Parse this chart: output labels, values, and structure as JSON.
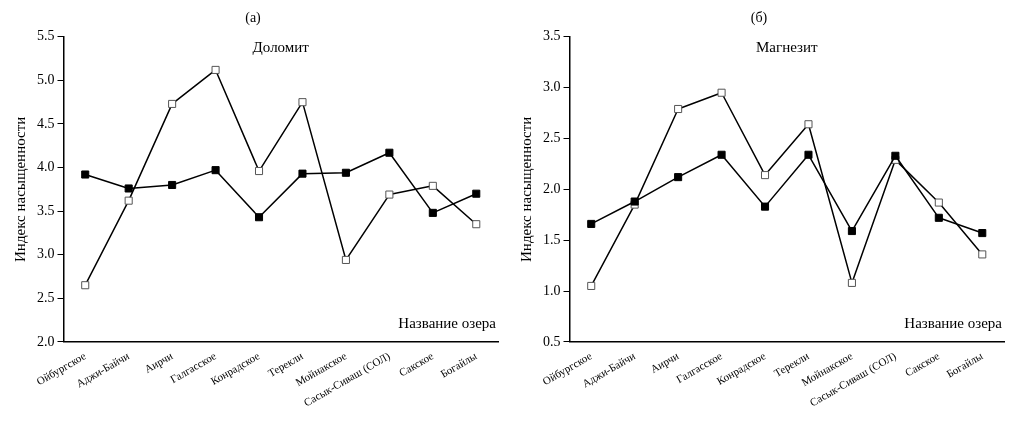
{
  "chart_data": [
    {
      "type": "line",
      "title": "(a)",
      "subtitle": "Доломит",
      "xlabel": "Название озера",
      "ylabel": "Индекс насыщенности",
      "categories": [
        "Ойбургское",
        "Аджи-Байчи",
        "Аирчи",
        "Галгасское",
        "Конрадское",
        "Терекли",
        "Мойнакское",
        "Сасык-Сиваш (СОЛ)",
        "Сакское",
        "Богайлы"
      ],
      "series": [
        {
          "color": "#000000",
          "values": [
            3.92,
            3.76,
            3.8,
            3.97,
            3.43,
            3.93,
            3.94,
            4.17,
            3.48,
            3.7
          ]
        },
        {
          "color": "#000000",
          "values": [
            2.65,
            3.62,
            4.73,
            5.12,
            3.96,
            4.75,
            2.94,
            3.69,
            3.79,
            3.35
          ]
        }
      ],
      "ylim": [
        2.0,
        5.5
      ],
      "yticks": [
        {
          "value": 2,
          "label": "2.0"
        },
        2.5,
        {
          "value": 3,
          "label": "3.0"
        },
        3.5,
        {
          "value": 4,
          "label": "4.0"
        },
        4.5,
        {
          "value": 5,
          "label": "5.0"
        },
        5.5
      ],
      "marker": "square",
      "line_style": "solid",
      "grid": false,
      "legend": false
    },
    {
      "type": "line",
      "title": "(б)",
      "subtitle": "Магнезит",
      "xlabel": "Название озера",
      "ylabel": "Индекс насыщенности",
      "categories": [
        "Ойбургское",
        "Аджи-Байчи",
        "Аирчи",
        "Галгасское",
        "Конрадское",
        "Терекли",
        "Мойнакское",
        "Сасык-Сиваш (СОЛ)",
        "Сакское",
        "Богайлы"
      ],
      "series": [
        {
          "color": "#000000",
          "values": [
            1.66,
            1.88,
            2.12,
            2.34,
            1.83,
            2.34,
            1.59,
            2.33,
            1.72,
            1.57
          ]
        },
        {
          "color": "#000000",
          "values": [
            1.05,
            1.85,
            2.79,
            2.95,
            2.14,
            2.64,
            1.08,
            2.29,
            1.87,
            1.36
          ]
        }
      ],
      "ylim": [
        0.5,
        3.5
      ],
      "yticks": [
        0.5,
        {
          "value": 1,
          "label": "1.0"
        },
        1.5,
        {
          "value": 2,
          "label": "2.0"
        },
        2.5,
        {
          "value": 3,
          "label": "3.0"
        },
        3.5
      ],
      "marker": "square",
      "line_style": "solid",
      "grid": false,
      "legend": false
    }
  ]
}
